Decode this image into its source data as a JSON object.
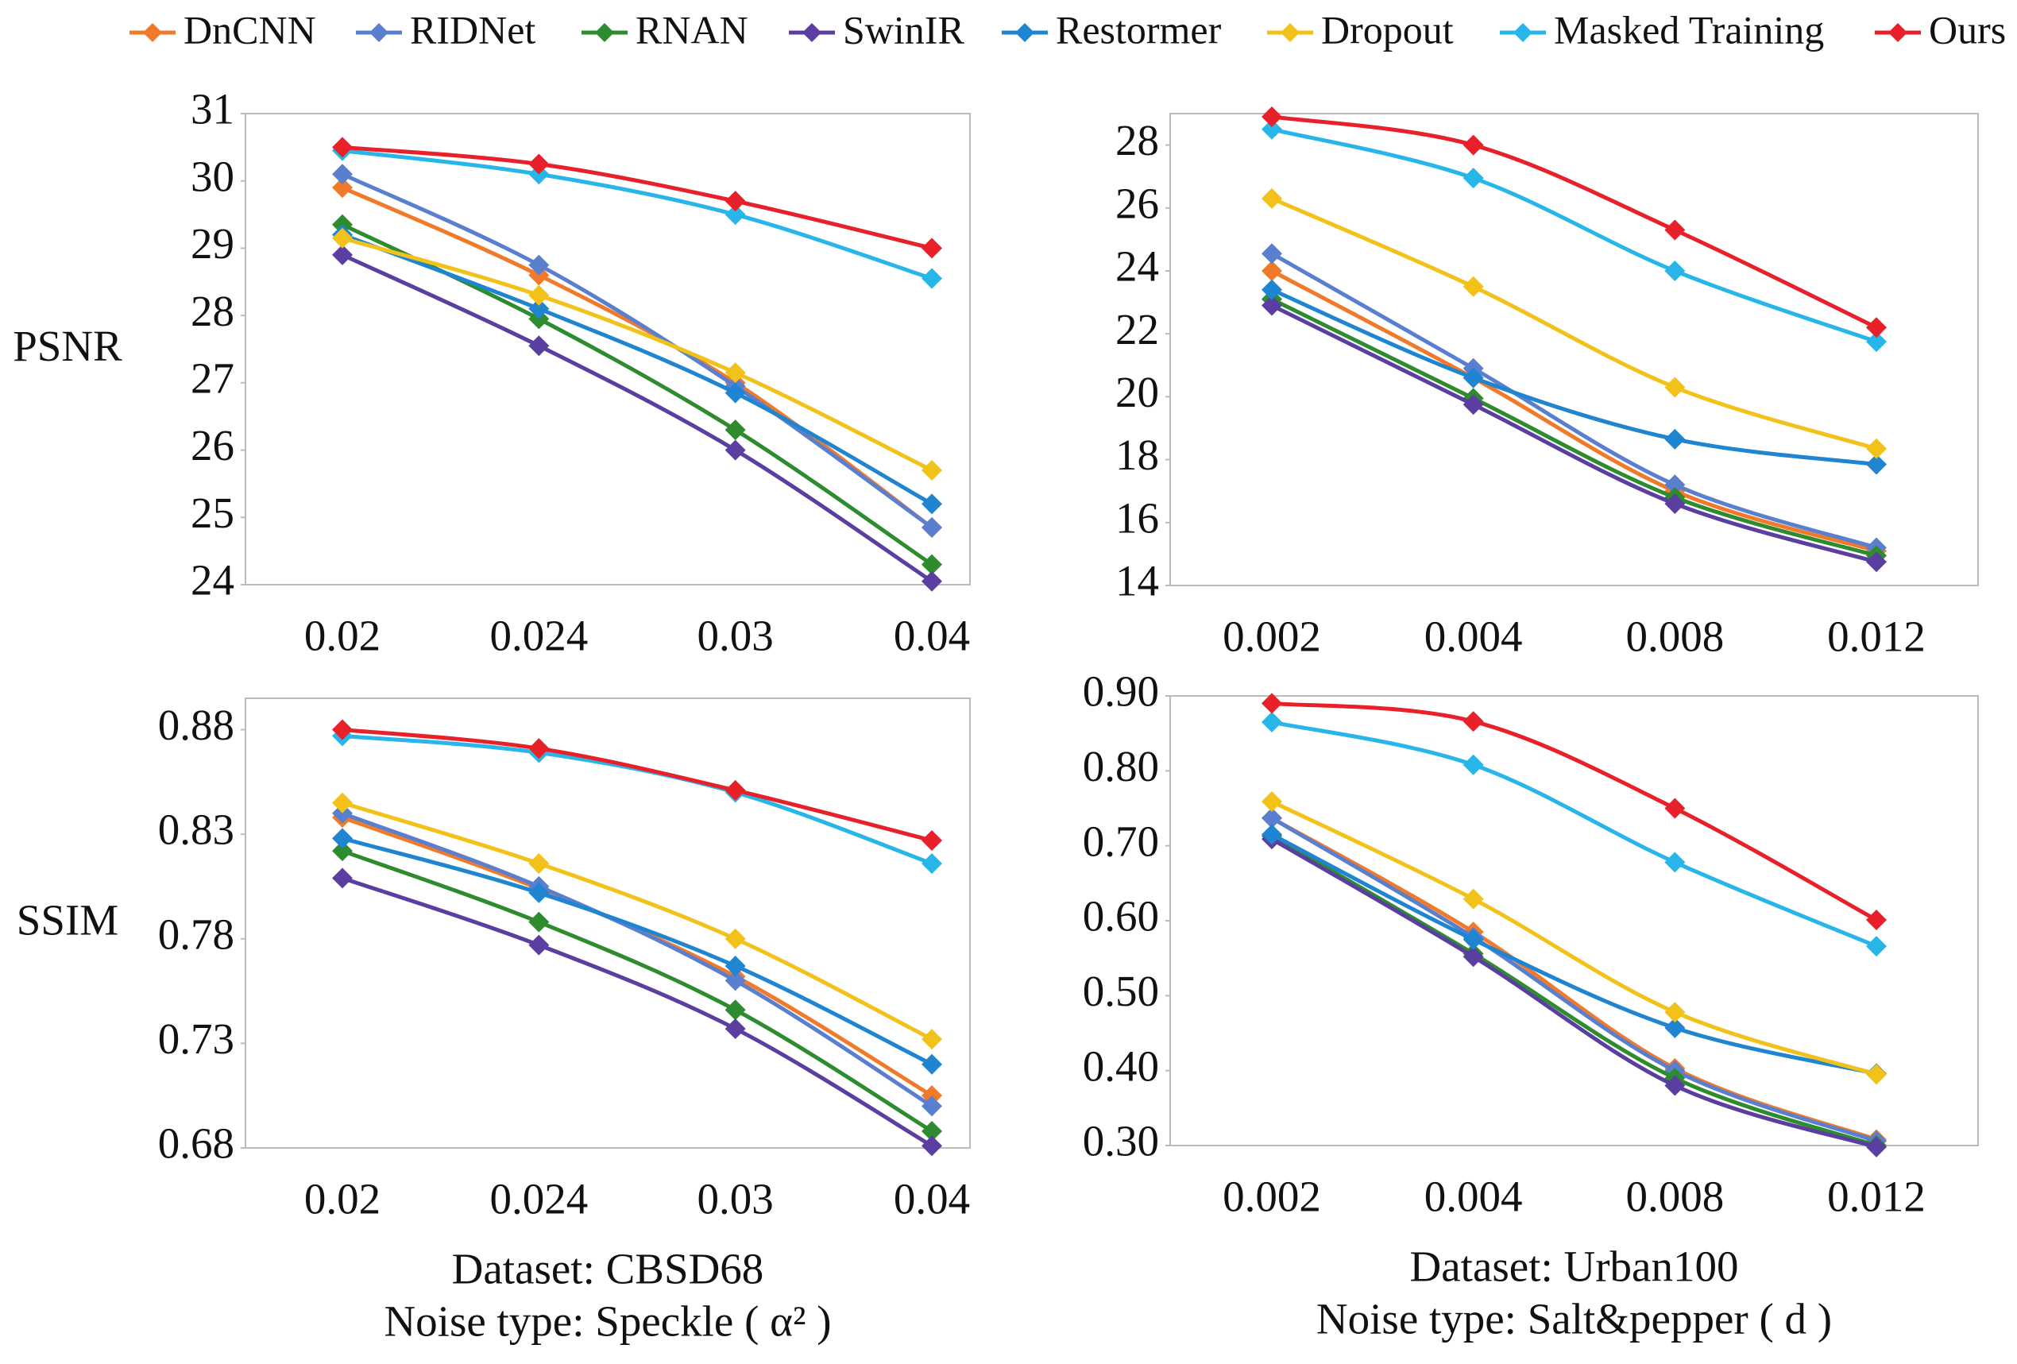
{
  "legend": [
    {
      "name": "DnCNN",
      "color": "#f07a2a"
    },
    {
      "name": "RIDNet",
      "color": "#5b7fcf"
    },
    {
      "name": "RNAN",
      "color": "#2e8b2e"
    },
    {
      "name": "SwinIR",
      "color": "#5b3fa0"
    },
    {
      "name": "Restormer",
      "color": "#1f85d0"
    },
    {
      "name": "Dropout",
      "color": "#f2c21b"
    },
    {
      "name": "Masked Training",
      "color": "#27b5ea"
    },
    {
      "name": "Ours",
      "color": "#e8202a"
    }
  ],
  "chart_data": [
    {
      "type": "line",
      "ylabel": "PSNR",
      "categories": [
        "0.02",
        "0.024",
        "0.03",
        "0.04"
      ],
      "ylim": [
        24,
        31
      ],
      "yticks": [
        24,
        25,
        26,
        27,
        28,
        29,
        30,
        31
      ],
      "series": [
        {
          "values": [
            29.9,
            28.6,
            27.0,
            24.85
          ]
        },
        {
          "values": [
            30.1,
            28.75,
            26.95,
            24.85
          ]
        },
        {
          "values": [
            29.35,
            27.95,
            26.3,
            24.3
          ]
        },
        {
          "values": [
            28.9,
            27.55,
            26.0,
            24.05
          ]
        },
        {
          "values": [
            29.2,
            28.1,
            26.85,
            25.2
          ]
        },
        {
          "values": [
            29.15,
            28.3,
            27.15,
            25.7
          ]
        },
        {
          "values": [
            30.45,
            30.1,
            29.5,
            28.55
          ]
        },
        {
          "values": [
            30.5,
            30.25,
            29.7,
            29.0
          ]
        }
      ]
    },
    {
      "type": "line",
      "categories": [
        "0.002",
        "0.004",
        "0.008",
        "0.012"
      ],
      "ylim": [
        14,
        29
      ],
      "yticks": [
        14,
        16,
        18,
        20,
        22,
        24,
        26,
        28
      ],
      "series": [
        {
          "values": [
            24.0,
            20.6,
            17.0,
            15.1
          ]
        },
        {
          "values": [
            24.55,
            20.9,
            17.2,
            15.2
          ]
        },
        {
          "values": [
            23.1,
            19.95,
            16.8,
            14.95
          ]
        },
        {
          "values": [
            22.9,
            19.75,
            16.6,
            14.75
          ]
        },
        {
          "values": [
            23.4,
            20.6,
            18.65,
            17.85
          ]
        },
        {
          "values": [
            26.3,
            23.5,
            20.3,
            18.35
          ]
        },
        {
          "values": [
            28.5,
            26.95,
            24.0,
            21.75
          ]
        },
        {
          "values": [
            28.9,
            28.0,
            25.3,
            22.2
          ]
        }
      ]
    },
    {
      "type": "line",
      "ylabel": "SSIM",
      "xlabel": [
        "Dataset: CBSD68",
        "Noise type: Speckle ( α² )"
      ],
      "categories": [
        "0.02",
        "0.024",
        "0.03",
        "0.04"
      ],
      "ylim": [
        0.68,
        0.895
      ],
      "yticks": [
        0.68,
        0.73,
        0.78,
        0.83,
        0.88
      ],
      "series": [
        {
          "values": [
            0.838,
            0.804,
            0.762,
            0.705
          ]
        },
        {
          "values": [
            0.84,
            0.805,
            0.76,
            0.7
          ]
        },
        {
          "values": [
            0.822,
            0.788,
            0.746,
            0.688
          ]
        },
        {
          "values": [
            0.809,
            0.777,
            0.737,
            0.681
          ]
        },
        {
          "values": [
            0.828,
            0.802,
            0.767,
            0.72
          ]
        },
        {
          "values": [
            0.845,
            0.816,
            0.78,
            0.732
          ]
        },
        {
          "values": [
            0.877,
            0.869,
            0.85,
            0.816
          ]
        },
        {
          "values": [
            0.88,
            0.871,
            0.851,
            0.827
          ]
        }
      ]
    },
    {
      "type": "line",
      "xlabel": [
        "Dataset: Urban100",
        "Noise type: Salt&pepper  ( d )"
      ],
      "categories": [
        "0.002",
        "0.004",
        "0.008",
        "0.012"
      ],
      "ylim": [
        0.3,
        0.9
      ],
      "yticks": [
        {
          "value": 0.3,
          "label": "0.30"
        },
        {
          "value": 0.4,
          "label": "0.40"
        },
        {
          "value": 0.5,
          "label": "0.50"
        },
        {
          "value": 0.6,
          "label": "0.60"
        },
        {
          "value": 0.7,
          "label": "0.70"
        },
        {
          "value": 0.8,
          "label": "0.80"
        },
        {
          "value": 0.9,
          "label": "0.90"
        }
      ],
      "series": [
        {
          "values": [
            0.737,
            0.585,
            0.403,
            0.308
          ]
        },
        {
          "values": [
            0.737,
            0.578,
            0.4,
            0.306
          ]
        },
        {
          "values": [
            0.713,
            0.556,
            0.39,
            0.3
          ]
        },
        {
          "values": [
            0.709,
            0.552,
            0.38,
            0.298
          ]
        },
        {
          "values": [
            0.715,
            0.575,
            0.457,
            0.396
          ]
        },
        {
          "values": [
            0.759,
            0.629,
            0.478,
            0.395
          ]
        },
        {
          "values": [
            0.865,
            0.808,
            0.678,
            0.566
          ]
        },
        {
          "values": [
            0.89,
            0.866,
            0.75,
            0.601
          ]
        }
      ]
    }
  ]
}
